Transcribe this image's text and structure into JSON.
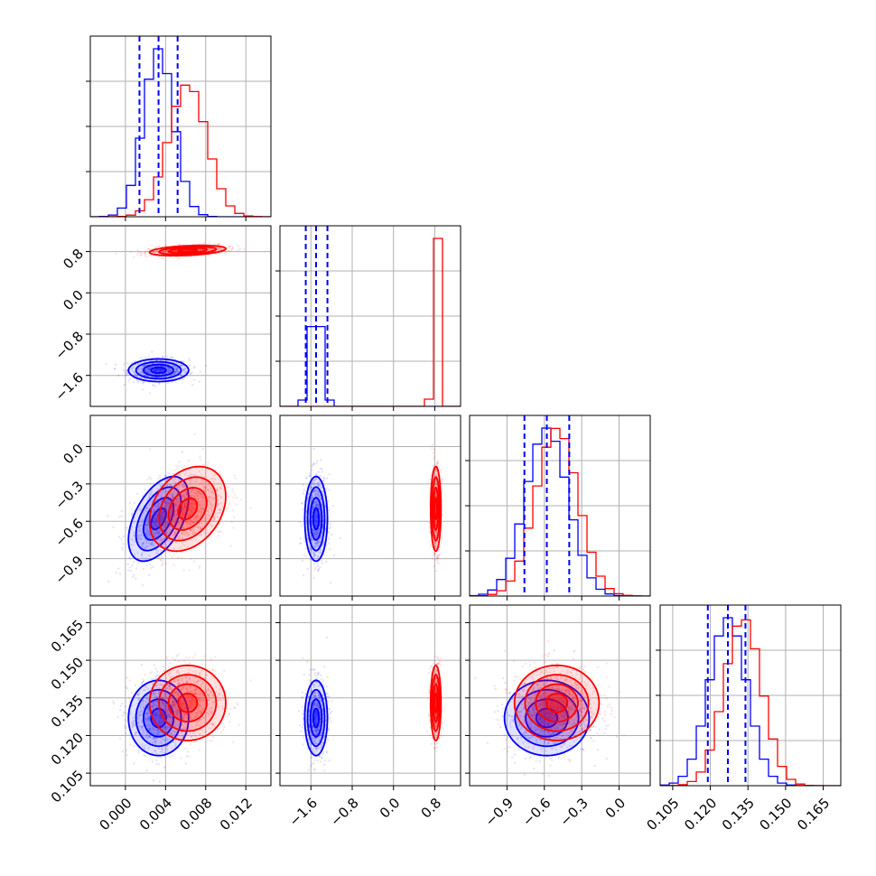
{
  "chart_data": {
    "type": "corner",
    "parameters": [
      {
        "range": [
          -0.0035,
          0.0145
        ],
        "ticks": [
          0.0,
          0.004,
          0.008,
          0.012
        ],
        "tick_labels": [
          "0.000",
          "0.004",
          "0.008",
          "0.012"
        ],
        "ylabel_ticks": [],
        "ylabel_tick_labels": []
      },
      {
        "range": [
          -2.2,
          1.3
        ],
        "ticks": [
          -1.6,
          -0.8,
          0.0,
          0.8
        ],
        "tick_labels": [
          "−1.6",
          "−0.8",
          "0.0",
          "0.8"
        ],
        "ylabel_ticks": [
          -1.6,
          -0.8,
          0.0,
          0.8
        ],
        "ylabel_tick_labels": [
          "−1.6",
          "−0.8",
          "0.0",
          "0.8"
        ]
      },
      {
        "range": [
          -1.2,
          0.25
        ],
        "ticks": [
          -0.9,
          -0.6,
          -0.3,
          0.0
        ],
        "tick_labels": [
          "−0.9",
          "−0.6",
          "−0.3",
          "0.0"
        ],
        "ylabel_ticks": [
          -0.9,
          -0.6,
          -0.3,
          0.0
        ],
        "ylabel_tick_labels": [
          "−0.9",
          "−0.6",
          "−0.3",
          "0.0"
        ]
      },
      {
        "range": [
          0.1,
          0.172
        ],
        "ticks": [
          0.105,
          0.12,
          0.135,
          0.15,
          0.165
        ],
        "tick_labels": [
          "0.105",
          "0.120",
          "0.135",
          "0.150",
          "0.165"
        ],
        "ylabel_ticks": [
          0.105,
          0.12,
          0.135,
          0.15,
          0.165
        ],
        "ylabel_tick_labels": [
          "0.105",
          "0.120",
          "0.135",
          "0.150",
          "0.165"
        ]
      }
    ],
    "series": [
      {
        "color": "#0000ff",
        "mean": [
          0.0033,
          -1.5,
          -0.58,
          0.127
        ],
        "std": [
          0.0015,
          0.11,
          0.17,
          0.0075
        ],
        "corr": {
          "0-2": 0.5
        }
      },
      {
        "color": "#ff0000",
        "mean": [
          0.0062,
          0.82,
          -0.5,
          0.133
        ],
        "std": [
          0.0019,
          0.05,
          0.17,
          0.0075
        ],
        "corr": {
          "0-1": 0.35,
          "0-2": 0.3
        }
      }
    ],
    "quantile_lines": {
      "color": "#0000ff",
      "values": [
        [
          0.0014,
          0.0033,
          0.0052
        ],
        [
          -1.7,
          -1.5,
          -1.28
        ],
        [
          -0.76,
          -0.58,
          -0.4
        ],
        [
          0.119,
          0.127,
          0.134
        ]
      ]
    },
    "grid": true,
    "legend": "none"
  }
}
